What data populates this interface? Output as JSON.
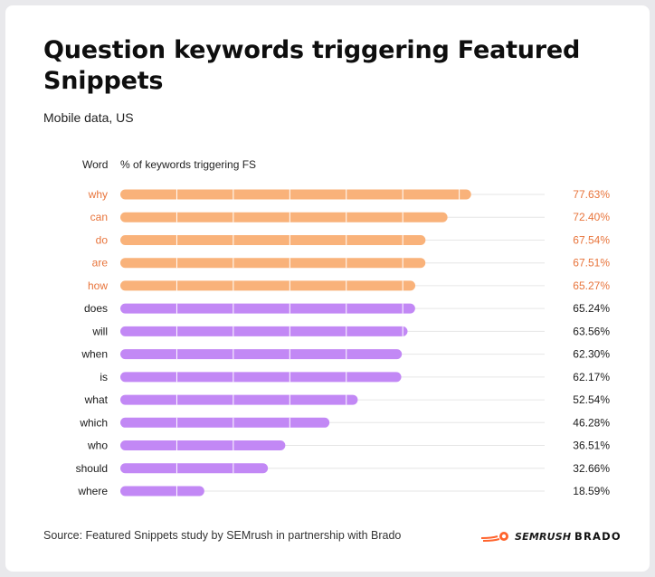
{
  "title": "Question keywords triggering Featured Snippets",
  "subtitle": "Mobile data, US",
  "source": "Source: Featured Snippets study by SEMrush in partnership with Brado",
  "logos": {
    "semrush": "SEMRUSH",
    "brado": "BRADO"
  },
  "colors": {
    "highlight": "#f9b27a",
    "highlight_label": "#e8743b",
    "regular": "#c288f5",
    "regular_label": "#1a1a1a",
    "gridline": "#ffffff",
    "leader": "#e6e6e6"
  },
  "chart_data": {
    "type": "bar",
    "orientation": "horizontal",
    "category_header": "Word",
    "value_header": "% of keywords triggering FS",
    "categories": [
      "why",
      "can",
      "do",
      "are",
      "how",
      "does",
      "will",
      "when",
      "is",
      "what",
      "which",
      "who",
      "should",
      "where"
    ],
    "values": [
      77.63,
      72.4,
      67.54,
      67.51,
      65.27,
      65.24,
      63.56,
      62.3,
      62.17,
      52.54,
      46.28,
      36.51,
      32.66,
      18.59
    ],
    "value_labels": [
      "77.63%",
      "72.40%",
      "67.54%",
      "67.51%",
      "65.27%",
      "65.24%",
      "63.56%",
      "62.30%",
      "62.17%",
      "52.54%",
      "46.28%",
      "36.51%",
      "32.66%",
      "18.59%"
    ],
    "highlighted": [
      true,
      true,
      true,
      true,
      true,
      false,
      false,
      false,
      false,
      false,
      false,
      false,
      false,
      false
    ],
    "xlim": [
      0,
      100
    ],
    "grid": true,
    "legend": "none"
  }
}
